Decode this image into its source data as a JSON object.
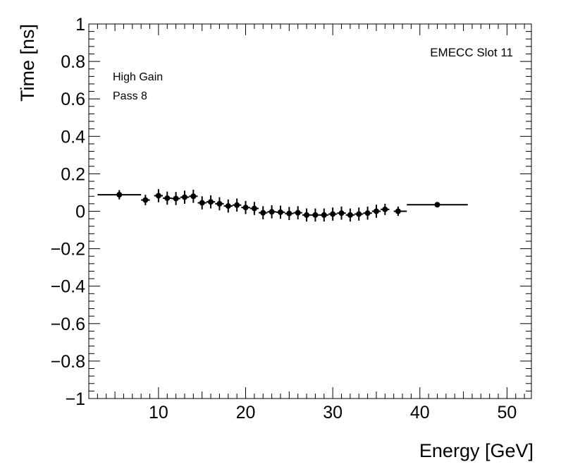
{
  "chart_data": {
    "type": "scatter",
    "title": "",
    "xlabel": "Energy [GeV]",
    "ylabel": "Time [ns]",
    "xlim": [
      2,
      52.8
    ],
    "ylim": [
      -1,
      1
    ],
    "x_ticks": [
      10,
      20,
      30,
      40,
      50
    ],
    "y_ticks": [
      -1,
      -0.8,
      -0.6,
      -0.4,
      -0.2,
      0,
      0.2,
      0.4,
      0.6,
      0.8,
      1
    ],
    "x_tick_labels": [
      "10",
      "20",
      "30",
      "40",
      "50"
    ],
    "y_tick_labels": [
      "−1",
      "−0.8",
      "−0.6",
      "−0.4",
      "−0.2",
      "0",
      "0.2",
      "0.4",
      "0.6",
      "0.8",
      "1"
    ],
    "annotations": {
      "gain": "High Gain",
      "pass": "Pass 8",
      "slot": "EMECC Slot 11"
    },
    "series": [
      {
        "name": "EMECC Slot 11",
        "points": [
          {
            "x": 5.5,
            "y": 0.088,
            "xlo": 3.0,
            "xhi": 8.0,
            "err": 0.025
          },
          {
            "x": 8.5,
            "y": 0.06,
            "xlo": 8.0,
            "xhi": 9.0,
            "err": 0.028
          },
          {
            "x": 10.0,
            "y": 0.083,
            "xlo": 9.5,
            "xhi": 10.5,
            "err": 0.035
          },
          {
            "x": 11.0,
            "y": 0.07,
            "xlo": 10.5,
            "xhi": 11.5,
            "err": 0.035
          },
          {
            "x": 12.0,
            "y": 0.068,
            "xlo": 11.5,
            "xhi": 12.5,
            "err": 0.035
          },
          {
            "x": 13.0,
            "y": 0.075,
            "xlo": 12.5,
            "xhi": 13.5,
            "err": 0.035
          },
          {
            "x": 14.0,
            "y": 0.08,
            "xlo": 13.5,
            "xhi": 14.5,
            "err": 0.035
          },
          {
            "x": 15.0,
            "y": 0.045,
            "xlo": 14.5,
            "xhi": 15.5,
            "err": 0.035
          },
          {
            "x": 16.0,
            "y": 0.05,
            "xlo": 15.5,
            "xhi": 16.5,
            "err": 0.035
          },
          {
            "x": 17.0,
            "y": 0.04,
            "xlo": 16.5,
            "xhi": 17.5,
            "err": 0.035
          },
          {
            "x": 18.0,
            "y": 0.028,
            "xlo": 17.5,
            "xhi": 18.5,
            "err": 0.035
          },
          {
            "x": 19.0,
            "y": 0.033,
            "xlo": 18.5,
            "xhi": 19.5,
            "err": 0.035
          },
          {
            "x": 20.0,
            "y": 0.02,
            "xlo": 19.5,
            "xhi": 20.5,
            "err": 0.035
          },
          {
            "x": 21.0,
            "y": 0.015,
            "xlo": 20.5,
            "xhi": 21.5,
            "err": 0.035
          },
          {
            "x": 22.0,
            "y": -0.008,
            "xlo": 21.5,
            "xhi": 22.5,
            "err": 0.035
          },
          {
            "x": 23.0,
            "y": -0.003,
            "xlo": 22.5,
            "xhi": 23.5,
            "err": 0.035
          },
          {
            "x": 24.0,
            "y": -0.005,
            "xlo": 23.5,
            "xhi": 24.5,
            "err": 0.035
          },
          {
            "x": 25.0,
            "y": -0.012,
            "xlo": 24.5,
            "xhi": 25.5,
            "err": 0.035
          },
          {
            "x": 26.0,
            "y": -0.008,
            "xlo": 25.5,
            "xhi": 26.5,
            "err": 0.035
          },
          {
            "x": 27.0,
            "y": -0.02,
            "xlo": 26.5,
            "xhi": 27.5,
            "err": 0.035
          },
          {
            "x": 28.0,
            "y": -0.02,
            "xlo": 27.5,
            "xhi": 28.5,
            "err": 0.035
          },
          {
            "x": 29.0,
            "y": -0.02,
            "xlo": 28.5,
            "xhi": 29.5,
            "err": 0.035
          },
          {
            "x": 30.0,
            "y": -0.015,
            "xlo": 29.5,
            "xhi": 30.5,
            "err": 0.035
          },
          {
            "x": 31.0,
            "y": -0.01,
            "xlo": 30.5,
            "xhi": 31.5,
            "err": 0.035
          },
          {
            "x": 32.0,
            "y": -0.02,
            "xlo": 31.5,
            "xhi": 32.5,
            "err": 0.035
          },
          {
            "x": 33.0,
            "y": -0.015,
            "xlo": 32.5,
            "xhi": 33.5,
            "err": 0.035
          },
          {
            "x": 34.0,
            "y": -0.01,
            "xlo": 33.5,
            "xhi": 34.5,
            "err": 0.035
          },
          {
            "x": 35.0,
            "y": 0.0,
            "xlo": 34.5,
            "xhi": 35.5,
            "err": 0.035
          },
          {
            "x": 36.0,
            "y": 0.01,
            "xlo": 35.5,
            "xhi": 36.5,
            "err": 0.03
          },
          {
            "x": 37.5,
            "y": 0.0,
            "xlo": 37.0,
            "xhi": 38.5,
            "err": 0.025
          },
          {
            "x": 42.0,
            "y": 0.035,
            "xlo": 38.5,
            "xhi": 45.5,
            "err": 0.012
          }
        ]
      }
    ]
  }
}
